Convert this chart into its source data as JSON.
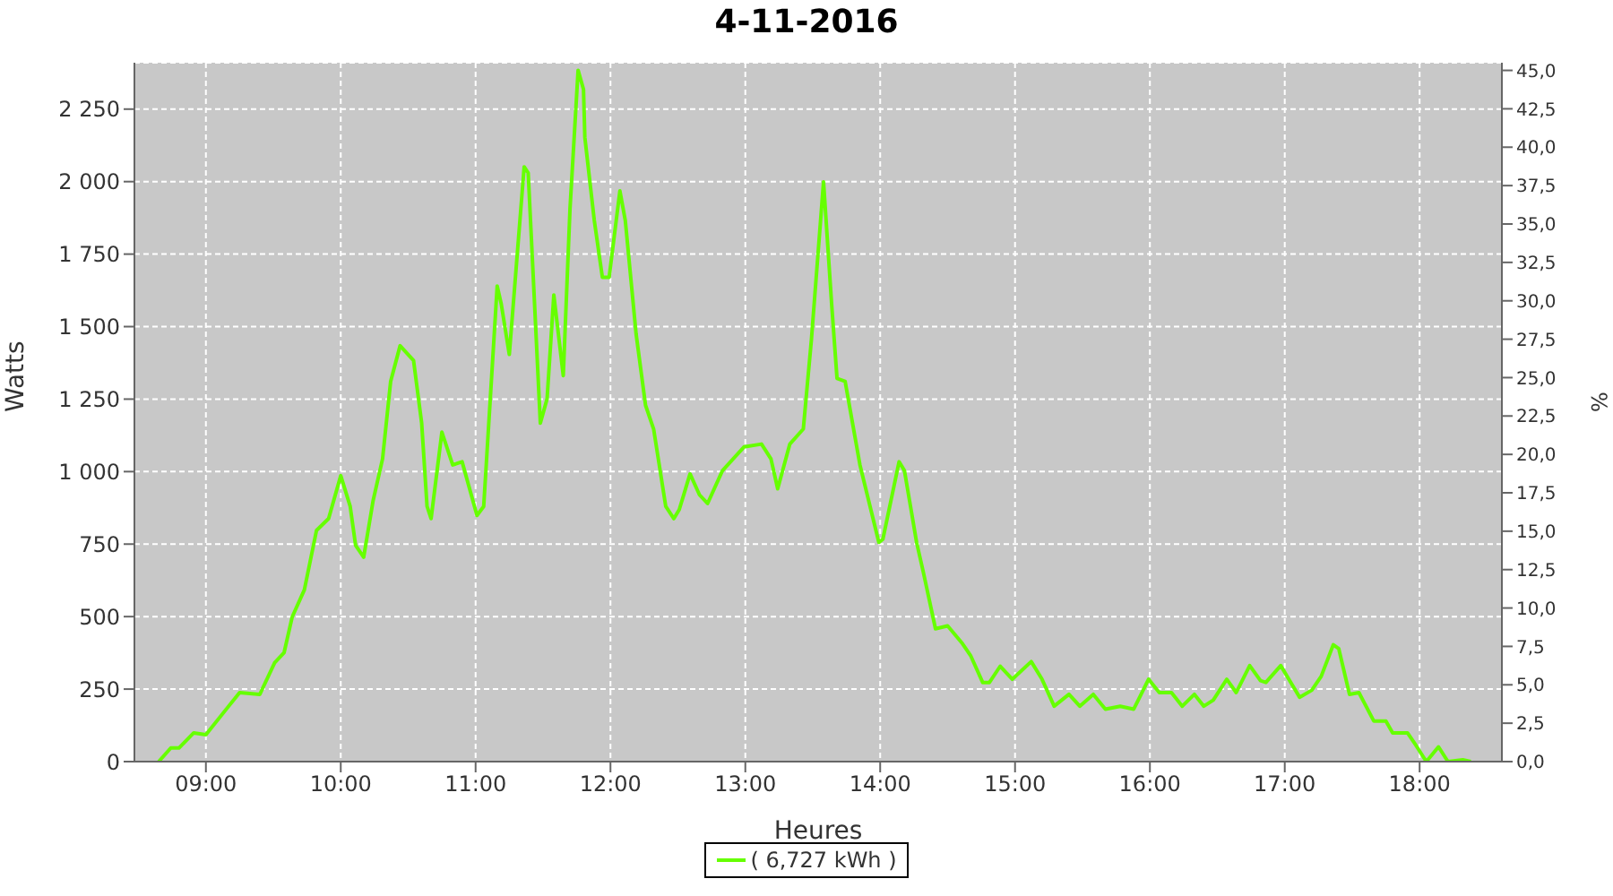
{
  "chart_data": {
    "type": "line",
    "title": "4-11-2016",
    "xlabel": "Heures",
    "ylabel": "Watts",
    "y2label": "%",
    "x": [
      8.65,
      8.74,
      8.8,
      8.91,
      9.0,
      9.25,
      9.4,
      9.51,
      9.58,
      9.64,
      9.73,
      9.82,
      9.91,
      10.0,
      10.07,
      10.11,
      10.17,
      10.24,
      10.31,
      10.37,
      10.44,
      10.54,
      10.6,
      10.64,
      10.67,
      10.75,
      10.83,
      10.9,
      11.01,
      11.06,
      11.16,
      11.19,
      11.25,
      11.36,
      11.39,
      11.48,
      11.53,
      11.58,
      11.65,
      11.7,
      11.76,
      11.8,
      11.81,
      11.88,
      11.94,
      11.99,
      12.07,
      12.11,
      12.19,
      12.26,
      12.32,
      12.41,
      12.47,
      12.51,
      12.59,
      12.66,
      12.72,
      12.83,
      12.99,
      13.12,
      13.19,
      13.24,
      13.33,
      13.43,
      13.49,
      13.58,
      13.64,
      13.68,
      13.74,
      13.85,
      13.99,
      14.02,
      14.14,
      14.18,
      14.27,
      14.32,
      14.41,
      14.5,
      14.61,
      14.67,
      14.76,
      14.81,
      14.89,
      14.98,
      15.12,
      15.2,
      15.29,
      15.4,
      15.48,
      15.58,
      15.67,
      15.78,
      15.88,
      15.99,
      16.07,
      16.16,
      16.24,
      16.33,
      16.4,
      16.47,
      16.57,
      16.64,
      16.74,
      16.82,
      16.86,
      16.97,
      17.11,
      17.2,
      17.27,
      17.36,
      17.4,
      17.48,
      17.55,
      17.66,
      17.75,
      17.8,
      17.91,
      17.97,
      18.05,
      18.14,
      18.21,
      18.32,
      18.38
    ],
    "series": [
      {
        "name": "( 6,727 kWh )",
        "color": "#66ff00",
        "values": [
          0,
          47,
          47,
          99,
          93,
          238,
          232,
          341,
          376,
          499,
          592,
          797,
          838,
          986,
          880,
          746,
          705,
          900,
          1044,
          1311,
          1434,
          1383,
          1167,
          880,
          838,
          1136,
          1023,
          1034,
          849,
          880,
          1640,
          1578,
          1404,
          2051,
          2030,
          1167,
          1251,
          1609,
          1331,
          1907,
          2384,
          2318,
          2153,
          1866,
          1670,
          1670,
          1968,
          1866,
          1475,
          1229,
          1147,
          880,
          838,
          869,
          992,
          920,
          890,
          1003,
          1085,
          1095,
          1044,
          941,
          1095,
          1147,
          1455,
          1999,
          1578,
          1321,
          1311,
          1023,
          756,
          767,
          1034,
          1003,
          756,
          653,
          458,
          468,
          407,
          366,
          273,
          273,
          329,
          284,
          345,
          284,
          191,
          232,
          191,
          232,
          181,
          191,
          181,
          284,
          238,
          238,
          191,
          232,
          191,
          212,
          284,
          238,
          331,
          279,
          273,
          331,
          222,
          246,
          294,
          403,
          390,
          232,
          238,
          140,
          140,
          99,
          99,
          58,
          0,
          51,
          0,
          6,
          0
        ]
      }
    ],
    "xlim": [
      8.47,
      18.61
    ],
    "xticks": [
      {
        "value": 9,
        "label": "09:00"
      },
      {
        "value": 10,
        "label": "10:00"
      },
      {
        "value": 11,
        "label": "11:00"
      },
      {
        "value": 12,
        "label": "12:00"
      },
      {
        "value": 13,
        "label": "13:00"
      },
      {
        "value": 14,
        "label": "14:00"
      },
      {
        "value": 15,
        "label": "15:00"
      },
      {
        "value": 16,
        "label": "16:00"
      },
      {
        "value": 17,
        "label": "17:00"
      },
      {
        "value": 18,
        "label": "18:00"
      }
    ],
    "ylim": [
      0,
      2410
    ],
    "yticks": [
      0,
      250,
      500,
      750,
      {
        "value": 1000,
        "label": "1 000"
      },
      {
        "value": 1250,
        "label": "1 250"
      },
      {
        "value": 1500,
        "label": "1 500"
      },
      {
        "value": 1750,
        "label": "1 750"
      },
      {
        "value": 2000,
        "label": "2 000"
      },
      {
        "value": 2250,
        "label": "2 250"
      }
    ],
    "y2lim": [
      0,
      45.5
    ],
    "y2ticks": [
      {
        "value": 0,
        "label": "0,0"
      },
      {
        "value": 2.5,
        "label": "2,5"
      },
      {
        "value": 5,
        "label": "5,0"
      },
      {
        "value": 7.5,
        "label": "7,5"
      },
      {
        "value": 10,
        "label": "10,0"
      },
      {
        "value": 12.5,
        "label": "12,5"
      },
      {
        "value": 15,
        "label": "15,0"
      },
      {
        "value": 17.5,
        "label": "17,5"
      },
      {
        "value": 20,
        "label": "20,0"
      },
      {
        "value": 22.5,
        "label": "22,5"
      },
      {
        "value": 25,
        "label": "25,0"
      },
      {
        "value": 27.5,
        "label": "27,5"
      },
      {
        "value": 30,
        "label": "30,0"
      },
      {
        "value": 32.5,
        "label": "32,5"
      },
      {
        "value": 35,
        "label": "35,0"
      },
      {
        "value": 37.5,
        "label": "37,5"
      },
      {
        "value": 40,
        "label": "40,0"
      },
      {
        "value": 42.5,
        "label": "42,5"
      },
      {
        "value": 45,
        "label": "45,0"
      }
    ],
    "grid": true,
    "legend": "bottom",
    "marker": "none",
    "line_style": "solid"
  }
}
